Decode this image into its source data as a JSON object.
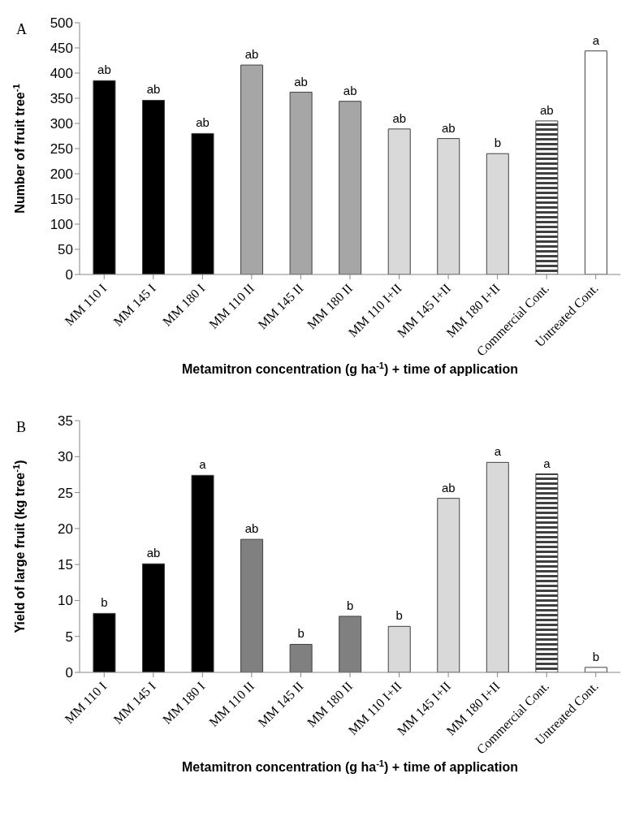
{
  "chart_data": [
    {
      "type": "bar",
      "title": "A",
      "xlabel": "Metamitron concentration (g ha$^{-1}$) + time of application",
      "ylabel": "Number of fruit tree$^{-1}$",
      "categories": [
        "MM 110 I",
        "MM 145 I",
        "MM 180 I",
        "MM 110 II",
        "MM 145 II",
        "MM 180 II",
        "MM 110 I+II",
        "MM 145 I+II",
        "MM 180 I+II",
        "Commercial Cont.",
        "Untreated Cont."
      ],
      "values": [
        385,
        346,
        280,
        416,
        362,
        344,
        289,
        270,
        240,
        305,
        444
      ],
      "colors": [
        "#000000",
        "#000000",
        "#000000",
        "#a6a6a6",
        "#a6a6a6",
        "#a6a6a6",
        "#d9d9d9",
        "#d9d9d9",
        "#d9d9d9",
        "#404040",
        "#ffffff"
      ],
      "value_labels": [
        "ab",
        "ab",
        "ab",
        "ab",
        "ab",
        "ab",
        "ab",
        "ab",
        "b",
        "ab",
        "a"
      ],
      "ylim": [
        0,
        500
      ],
      "yticks": [
        0,
        50,
        100,
        150,
        200,
        250,
        300,
        350,
        400,
        450,
        500
      ],
      "grid": false,
      "legend": false
    },
    {
      "type": "bar",
      "title": "B",
      "xlabel": "Metamitron concentration (g ha$^{-1}$) + time of application",
      "ylabel": "Yield of large fruit (kg tree$^{-1}$)",
      "categories": [
        "MM 110 I",
        "MM 145 I",
        "MM 180 I",
        "MM 110 II",
        "MM 145 II",
        "MM 180 II",
        "MM 110 I+II",
        "MM 145 I+II",
        "MM 180 I+II",
        "Commercial Cont.",
        "Untreated Cont."
      ],
      "values": [
        8.2,
        15.1,
        27.4,
        18.5,
        3.9,
        7.8,
        6.4,
        24.2,
        29.2,
        27.6,
        0.7
      ],
      "colors": [
        "#000000",
        "#000000",
        "#000000",
        "#808080",
        "#808080",
        "#808080",
        "#d9d9d9",
        "#d9d9d9",
        "#d9d9d9",
        "#404040",
        "#ffffff"
      ],
      "value_labels": [
        "b",
        "ab",
        "a",
        "ab",
        "b",
        "b",
        "b",
        "ab",
        "a",
        "a",
        "b"
      ],
      "ylim": [
        0,
        35
      ],
      "yticks": [
        0,
        5,
        10,
        15,
        20,
        25,
        30,
        35
      ],
      "grid": false,
      "legend": false
    }
  ]
}
